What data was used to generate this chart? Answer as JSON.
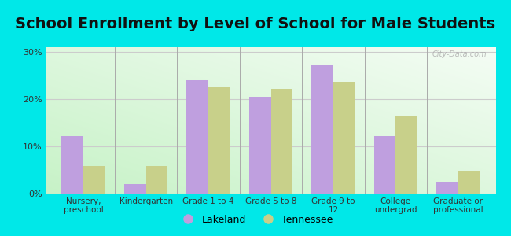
{
  "title": "School Enrollment by Level of School for Male Students",
  "categories": [
    "Nursery,\npreschool",
    "Kindergarten",
    "Grade 1 to 4",
    "Grade 5 to 8",
    "Grade 9 to\n12",
    "College\nundergrad",
    "Graduate or\nprofessional"
  ],
  "lakeland": [
    12.2,
    2.0,
    24.0,
    20.5,
    27.3,
    12.2,
    2.5
  ],
  "tennessee": [
    5.8,
    5.8,
    22.7,
    22.1,
    23.7,
    16.3,
    4.8
  ],
  "lakeland_color": "#bf9fdf",
  "tennessee_color": "#c8d08a",
  "background_color": "#00e8e8",
  "ylabel_ticks": [
    "0%",
    "10%",
    "20%",
    "30%"
  ],
  "yticks": [
    0,
    10,
    20,
    30
  ],
  "ylim": [
    0,
    31
  ],
  "title_fontsize": 14,
  "legend_labels": [
    "Lakeland",
    "Tennessee"
  ],
  "bar_width": 0.35,
  "watermark": "City-Data.com"
}
